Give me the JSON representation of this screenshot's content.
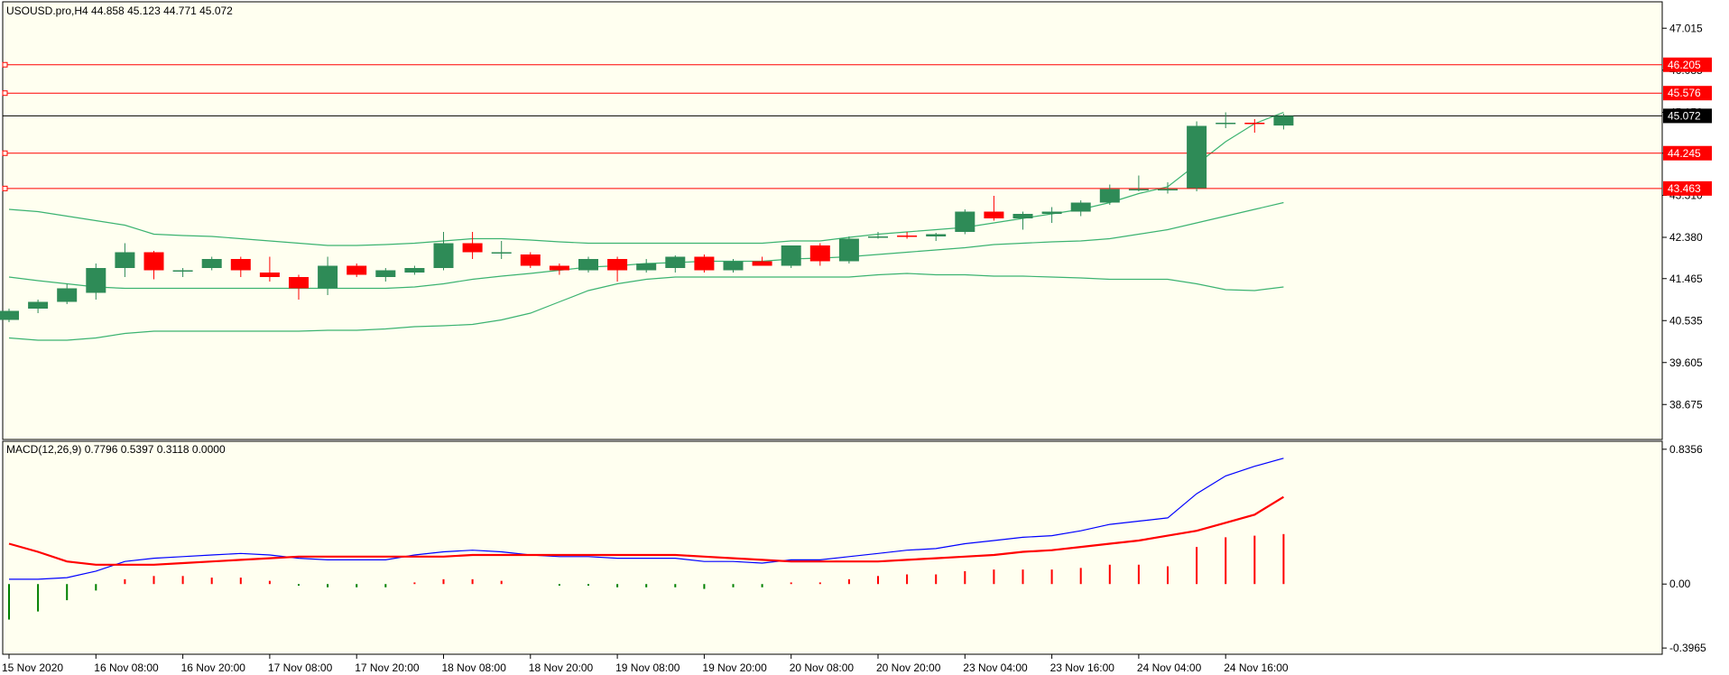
{
  "colors": {
    "background": "#fffff0",
    "bull_body": "#2e8b57",
    "bear_body": "#ff0000",
    "bollinger": "#3cb371",
    "level_line": "#ff0000",
    "price_line": "#000000",
    "macd_line": "#0000ff",
    "signal_line": "#ff0000",
    "hist_positive": "#ff0000",
    "hist_negative": "#008000"
  },
  "chart_data": [
    {
      "type": "candlestick",
      "title": "USOUSD.pro,H4  44.858 45.123 44.771 45.072",
      "ylim": [
        37.9,
        47.6
      ],
      "y_ticks": [
        "47.015",
        "46.085",
        "45.150",
        "44.245",
        "43.310",
        "42.380",
        "41.465",
        "40.535",
        "39.605",
        "38.675"
      ],
      "x_labels": [
        {
          "i": 0,
          "label": "15 Nov 2020"
        },
        {
          "i": 3,
          "label": "16 Nov 08:00"
        },
        {
          "i": 6,
          "label": "16 Nov 20:00"
        },
        {
          "i": 9,
          "label": "17 Nov 08:00"
        },
        {
          "i": 12,
          "label": "17 Nov 20:00"
        },
        {
          "i": 15,
          "label": "18 Nov 08:00"
        },
        {
          "i": 18,
          "label": "18 Nov 20:00"
        },
        {
          "i": 21,
          "label": "19 Nov 08:00"
        },
        {
          "i": 24,
          "label": "19 Nov 20:00"
        },
        {
          "i": 27,
          "label": "20 Nov 08:00"
        },
        {
          "i": 30,
          "label": "20 Nov 20:00"
        },
        {
          "i": 33,
          "label": "23 Nov 04:00"
        },
        {
          "i": 36,
          "label": "23 Nov 16:00"
        },
        {
          "i": 39,
          "label": "24 Nov 04:00"
        },
        {
          "i": 42,
          "label": "24 Nov 16:00"
        }
      ],
      "candles": [
        {
          "o": 40.55,
          "h": 40.8,
          "l": 40.5,
          "c": 40.75
        },
        {
          "o": 40.8,
          "h": 41.0,
          "l": 40.7,
          "c": 40.95
        },
        {
          "o": 40.95,
          "h": 41.35,
          "l": 40.9,
          "c": 41.25
        },
        {
          "o": 41.15,
          "h": 41.8,
          "l": 41.0,
          "c": 41.7
        },
        {
          "o": 41.7,
          "h": 42.25,
          "l": 41.5,
          "c": 42.05
        },
        {
          "o": 42.05,
          "h": 42.08,
          "l": 41.45,
          "c": 41.65
        },
        {
          "o": 41.65,
          "h": 41.7,
          "l": 41.5,
          "c": 41.65
        },
        {
          "o": 41.7,
          "h": 41.95,
          "l": 41.65,
          "c": 41.9
        },
        {
          "o": 41.9,
          "h": 41.95,
          "l": 41.5,
          "c": 41.65
        },
        {
          "o": 41.6,
          "h": 41.95,
          "l": 41.4,
          "c": 41.5
        },
        {
          "o": 41.5,
          "h": 41.55,
          "l": 41.0,
          "c": 41.25
        },
        {
          "o": 41.25,
          "h": 41.95,
          "l": 41.1,
          "c": 41.75
        },
        {
          "o": 41.75,
          "h": 41.8,
          "l": 41.5,
          "c": 41.55
        },
        {
          "o": 41.5,
          "h": 41.7,
          "l": 41.4,
          "c": 41.65
        },
        {
          "o": 41.6,
          "h": 41.75,
          "l": 41.55,
          "c": 41.7
        },
        {
          "o": 41.7,
          "h": 42.5,
          "l": 41.65,
          "c": 42.25
        },
        {
          "o": 42.25,
          "h": 42.5,
          "l": 41.9,
          "c": 42.05
        },
        {
          "o": 42.05,
          "h": 42.3,
          "l": 41.9,
          "c": 42.05
        },
        {
          "o": 42.0,
          "h": 42.05,
          "l": 41.7,
          "c": 41.75
        },
        {
          "o": 41.75,
          "h": 41.8,
          "l": 41.55,
          "c": 41.65
        },
        {
          "o": 41.65,
          "h": 41.95,
          "l": 41.6,
          "c": 41.9
        },
        {
          "o": 41.9,
          "h": 41.95,
          "l": 41.4,
          "c": 41.65
        },
        {
          "o": 41.65,
          "h": 41.9,
          "l": 41.6,
          "c": 41.8
        },
        {
          "o": 41.7,
          "h": 41.98,
          "l": 41.6,
          "c": 41.95
        },
        {
          "o": 41.95,
          "h": 42.0,
          "l": 41.6,
          "c": 41.65
        },
        {
          "o": 41.65,
          "h": 41.9,
          "l": 41.6,
          "c": 41.85
        },
        {
          "o": 41.85,
          "h": 41.95,
          "l": 41.75,
          "c": 41.75
        },
        {
          "o": 41.75,
          "h": 42.2,
          "l": 41.7,
          "c": 42.2
        },
        {
          "o": 42.2,
          "h": 42.25,
          "l": 41.75,
          "c": 41.85
        },
        {
          "o": 41.85,
          "h": 42.4,
          "l": 41.8,
          "c": 42.35
        },
        {
          "o": 42.4,
          "h": 42.5,
          "l": 42.35,
          "c": 42.4
        },
        {
          "o": 42.42,
          "h": 42.5,
          "l": 42.35,
          "c": 42.4
        },
        {
          "o": 42.4,
          "h": 42.48,
          "l": 42.3,
          "c": 42.45
        },
        {
          "o": 42.5,
          "h": 43.0,
          "l": 42.45,
          "c": 42.95
        },
        {
          "o": 42.95,
          "h": 43.3,
          "l": 42.75,
          "c": 42.8
        },
        {
          "o": 42.8,
          "h": 42.95,
          "l": 42.55,
          "c": 42.9
        },
        {
          "o": 42.9,
          "h": 43.05,
          "l": 42.7,
          "c": 42.95
        },
        {
          "o": 42.95,
          "h": 43.2,
          "l": 42.85,
          "c": 43.15
        },
        {
          "o": 43.15,
          "h": 43.55,
          "l": 43.1,
          "c": 43.45
        },
        {
          "o": 43.45,
          "h": 43.75,
          "l": 43.4,
          "c": 43.45
        },
        {
          "o": 43.45,
          "h": 43.6,
          "l": 43.35,
          "c": 43.45
        },
        {
          "o": 43.47,
          "h": 44.95,
          "l": 43.4,
          "c": 44.85
        },
        {
          "o": 44.9,
          "h": 45.15,
          "l": 44.8,
          "c": 44.92
        },
        {
          "o": 44.92,
          "h": 45.0,
          "l": 44.7,
          "c": 44.9
        },
        {
          "o": 44.858,
          "h": 45.123,
          "l": 44.771,
          "c": 45.072
        }
      ],
      "bollinger": {
        "upper": [
          43.0,
          42.95,
          42.85,
          42.75,
          42.65,
          42.45,
          42.42,
          42.4,
          42.35,
          42.3,
          42.25,
          42.2,
          42.2,
          42.22,
          42.25,
          42.3,
          42.35,
          42.35,
          42.32,
          42.28,
          42.25,
          42.25,
          42.25,
          42.25,
          42.25,
          42.25,
          42.25,
          42.3,
          42.3,
          42.38,
          42.45,
          42.5,
          42.55,
          42.6,
          42.7,
          42.8,
          42.9,
          43.0,
          43.15,
          43.35,
          43.5,
          44.0,
          44.5,
          44.9,
          45.15
        ],
        "middle": [
          41.5,
          41.42,
          41.35,
          41.28,
          41.25,
          41.25,
          41.25,
          41.25,
          41.25,
          41.25,
          41.25,
          41.25,
          41.25,
          41.25,
          41.28,
          41.35,
          41.45,
          41.52,
          41.58,
          41.65,
          41.72,
          41.75,
          41.8,
          41.82,
          41.85,
          41.85,
          41.85,
          41.9,
          41.92,
          41.95,
          42.0,
          42.05,
          42.1,
          42.15,
          42.22,
          42.25,
          42.28,
          42.3,
          42.35,
          42.45,
          42.55,
          42.7,
          42.85,
          43.0,
          43.15
        ],
        "lower": [
          40.15,
          40.1,
          40.1,
          40.15,
          40.25,
          40.3,
          40.3,
          40.3,
          40.3,
          40.3,
          40.3,
          40.32,
          40.32,
          40.35,
          40.4,
          40.42,
          40.45,
          40.55,
          40.7,
          40.95,
          41.2,
          41.35,
          41.45,
          41.5,
          41.5,
          41.5,
          41.5,
          41.5,
          41.5,
          41.5,
          41.55,
          41.58,
          41.55,
          41.55,
          41.52,
          41.52,
          41.5,
          41.48,
          41.45,
          41.45,
          41.45,
          41.35,
          41.22,
          41.2,
          41.28
        ]
      },
      "levels": [
        {
          "value": 46.205,
          "label": "46.205"
        },
        {
          "value": 45.576,
          "label": "45.576"
        },
        {
          "value": 44.245,
          "label": "44.245"
        },
        {
          "value": 43.463,
          "label": "43.463"
        }
      ],
      "current_price": {
        "value": 45.072,
        "label": "45.072"
      }
    },
    {
      "type": "line+bar",
      "title": "MACD(12,26,9) 0.7796 0.5397 0.3118 0.0000",
      "ylim": [
        -0.435,
        0.885
      ],
      "y_ticks": [
        "0.8356",
        "0.00",
        "-0.3965"
      ],
      "macd": [
        0.03,
        0.03,
        0.04,
        0.08,
        0.14,
        0.16,
        0.17,
        0.18,
        0.19,
        0.18,
        0.16,
        0.15,
        0.15,
        0.15,
        0.18,
        0.2,
        0.21,
        0.2,
        0.18,
        0.17,
        0.17,
        0.16,
        0.16,
        0.16,
        0.14,
        0.14,
        0.13,
        0.15,
        0.15,
        0.17,
        0.19,
        0.21,
        0.22,
        0.25,
        0.27,
        0.29,
        0.3,
        0.33,
        0.37,
        0.39,
        0.41,
        0.56,
        0.67,
        0.73,
        0.78
      ],
      "signal": [
        0.25,
        0.2,
        0.14,
        0.12,
        0.12,
        0.12,
        0.13,
        0.14,
        0.15,
        0.16,
        0.17,
        0.17,
        0.17,
        0.17,
        0.17,
        0.17,
        0.18,
        0.18,
        0.18,
        0.18,
        0.18,
        0.18,
        0.18,
        0.18,
        0.17,
        0.16,
        0.15,
        0.14,
        0.14,
        0.14,
        0.14,
        0.15,
        0.16,
        0.17,
        0.18,
        0.2,
        0.21,
        0.23,
        0.25,
        0.27,
        0.3,
        0.33,
        0.38,
        0.43,
        0.54
      ],
      "histogram": [
        -0.22,
        -0.17,
        -0.1,
        -0.04,
        0.03,
        0.05,
        0.05,
        0.04,
        0.04,
        0.02,
        -0.01,
        -0.02,
        -0.02,
        -0.02,
        0.01,
        0.03,
        0.03,
        0.02,
        0.0,
        -0.01,
        -0.01,
        -0.02,
        -0.02,
        -0.02,
        -0.03,
        -0.02,
        -0.02,
        0.01,
        0.01,
        0.03,
        0.05,
        0.06,
        0.06,
        0.08,
        0.09,
        0.09,
        0.09,
        0.1,
        0.12,
        0.12,
        0.11,
        0.23,
        0.29,
        0.3,
        0.31
      ],
      "hist_note": "first bar spans further below the frame edge"
    }
  ]
}
